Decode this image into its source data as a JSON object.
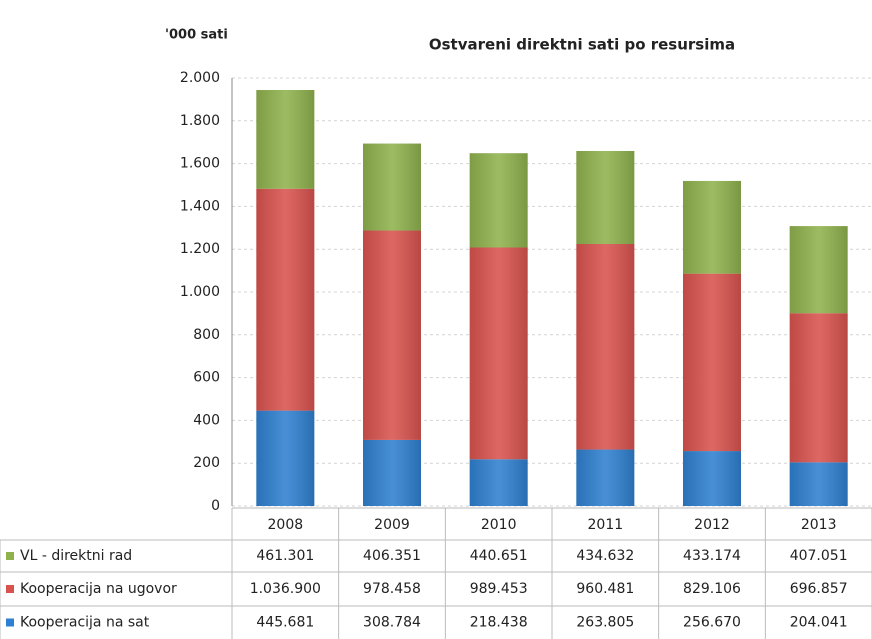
{
  "chart_data": {
    "type": "stacked_bar",
    "title": "Ostvareni direktni sati po resursima",
    "y_label": "'000 sati",
    "categories": [
      "2008",
      "2009",
      "2010",
      "2011",
      "2012",
      "2013"
    ],
    "series": [
      {
        "name": "VL - direktni rad",
        "color": "#8fb24d",
        "values": [
          461.301,
          406.351,
          440.651,
          434.632,
          433.174,
          407.051
        ],
        "value_labels": [
          "461.301",
          "406.351",
          "440.651",
          "434.632",
          "433.174",
          "407.051"
        ]
      },
      {
        "name": "Kooperacija na ugovor",
        "color": "#d9534e",
        "values": [
          1036.9,
          978.458,
          989.453,
          960.481,
          829.106,
          696.857
        ],
        "value_labels": [
          "1.036.900",
          "978.458",
          "989.453",
          "960.481",
          "829.106",
          "696.857"
        ]
      },
      {
        "name": "Kooperacija na sat",
        "color": "#2f80d0",
        "values": [
          445.681,
          308.784,
          218.438,
          263.805,
          256.67,
          204.041
        ],
        "value_labels": [
          "445.681",
          "308.784",
          "218.438",
          "263.805",
          "256.670",
          "204.041"
        ]
      }
    ],
    "ylim": [
      0,
      2000
    ],
    "yticks": [
      0,
      200,
      400,
      600,
      800,
      {
        "value": 1000,
        "label": "1.000"
      },
      {
        "value": 1200,
        "label": "1.200"
      },
      {
        "value": 1400,
        "label": "1.400"
      },
      {
        "value": 1600,
        "label": "1.600"
      },
      {
        "value": 1800,
        "label": "1.800"
      },
      {
        "value": 2000,
        "label": "2.000"
      }
    ],
    "grid": true
  }
}
